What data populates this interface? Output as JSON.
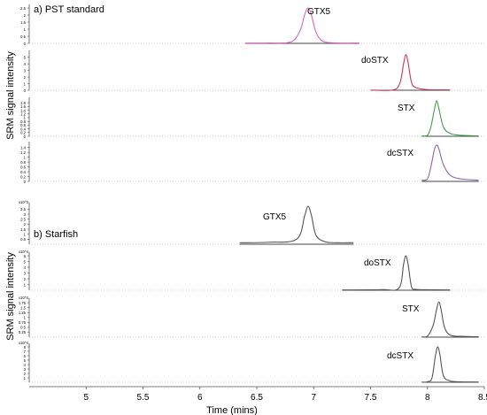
{
  "chart_data": [
    {
      "type": "line",
      "panel_label": "a) PST standard",
      "ylabel": "SRM signal intensity",
      "xlim": [
        4.5,
        8.5
      ],
      "tracks": [
        {
          "peak": "GTX5",
          "trace_color": "#e060c0",
          "x": [
            6.4,
            6.6,
            6.8,
            6.88,
            6.92,
            6.95,
            6.98,
            7.02,
            7.08,
            7.2,
            7.4
          ],
          "y": [
            0.02,
            0.03,
            0.1,
            0.9,
            2.0,
            2.5,
            2.0,
            0.8,
            0.15,
            0.03,
            0.03
          ],
          "yticks": [
            "0",
            "0.5",
            "1",
            "1.5",
            "2",
            "2.5"
          ],
          "ymax": 2.5
        },
        {
          "peak": "doSTX",
          "trace_color": "#cc3355",
          "x": [
            7.5,
            7.7,
            7.76,
            7.79,
            7.81,
            7.83,
            7.86,
            7.9,
            8.0,
            8.2
          ],
          "y": [
            0.03,
            0.05,
            1.2,
            4.0,
            5.4,
            4.2,
            1.2,
            0.4,
            0.1,
            0.05
          ],
          "yticks": [
            "0",
            "1",
            "2",
            "3",
            "4",
            "5"
          ],
          "ymax": 5.5
        },
        {
          "peak": "STX",
          "trace_color": "#4a9a4a",
          "x": [
            7.95,
            8.0,
            8.03,
            8.06,
            8.08,
            8.1,
            8.14,
            8.2,
            8.3,
            8.45
          ],
          "y": [
            0.02,
            0.05,
            0.5,
            1.4,
            1.9,
            1.5,
            0.5,
            0.15,
            0.05,
            0.02
          ],
          "yticks": [
            "0",
            "0.2",
            "0.4",
            "0.6",
            "0.8",
            "1",
            "1.2",
            "1.4",
            "1.6",
            "1.8"
          ],
          "ymax": 1.9
        },
        {
          "peak": "dcSTX",
          "trace_color": "#8866aa",
          "x": [
            7.95,
            8.0,
            8.03,
            8.06,
            8.08,
            8.1,
            8.14,
            8.2,
            8.3,
            8.45
          ],
          "y": [
            0.05,
            0.1,
            0.6,
            1.3,
            1.5,
            1.35,
            0.7,
            0.25,
            0.1,
            0.05
          ],
          "yticks": [
            "0",
            "0.2",
            "0.4",
            "0.6",
            "0.8",
            "1",
            "1.2",
            "1.4"
          ],
          "ymax": 1.5
        }
      ]
    },
    {
      "type": "line",
      "panel_label": "b) Starfish",
      "ylabel": "SRM signal intensity",
      "xlabel": "Time (mins)",
      "xlim": [
        4.5,
        8.5
      ],
      "xticks": [
        "5",
        "5.5",
        "6",
        "6.5",
        "7",
        "7.5",
        "8",
        "8.5"
      ],
      "tracks": [
        {
          "peak": "GTX5",
          "trace_color": "#555555",
          "exponent": "x10^3",
          "x": [
            6.35,
            6.6,
            6.85,
            6.92,
            6.95,
            6.98,
            7.02,
            7.1,
            7.2,
            7.35
          ],
          "y": [
            0.15,
            0.2,
            0.5,
            2.8,
            3.8,
            2.9,
            0.9,
            0.25,
            0.15,
            0.15
          ],
          "yticks": [
            "0.5",
            "1",
            "1.5",
            "2",
            "2.5",
            "3",
            "3.5"
          ],
          "ymax": 3.8
        },
        {
          "peak": "doSTX",
          "trace_color": "#555555",
          "exponent": "x10^4",
          "x": [
            7.25,
            7.6,
            7.75,
            7.79,
            7.81,
            7.83,
            7.86,
            7.9,
            8.0,
            8.2
          ],
          "y": [
            0.05,
            0.1,
            0.4,
            4.5,
            6.0,
            4.5,
            0.6,
            0.15,
            0.08,
            0.05
          ],
          "yticks": [
            "1",
            "2",
            "3",
            "4",
            "5",
            "6"
          ],
          "ymax": 6.0
        },
        {
          "peak": "STX",
          "trace_color": "#555555",
          "exponent": "x10^4",
          "x": [
            7.95,
            8.0,
            8.05,
            8.08,
            8.1,
            8.12,
            8.15,
            8.2,
            8.3,
            8.45
          ],
          "y": [
            0.02,
            0.05,
            0.6,
            1.4,
            1.8,
            1.4,
            0.5,
            0.1,
            0.04,
            0.02
          ],
          "yticks": [
            "0.25",
            "0.5",
            "0.75",
            "1",
            "1.25",
            "1.5",
            "1.75"
          ],
          "ymax": 1.8
        },
        {
          "peak": "dcSTX",
          "trace_color": "#555555",
          "exponent": "x10^4",
          "x": [
            7.95,
            8.0,
            8.04,
            8.07,
            8.09,
            8.11,
            8.14,
            8.2,
            8.3,
            8.45
          ],
          "y": [
            0.05,
            0.1,
            1.0,
            6.0,
            8.0,
            6.2,
            1.5,
            0.3,
            0.1,
            0.05
          ],
          "yticks": [
            "1",
            "2",
            "3",
            "4",
            "5",
            "6",
            "7",
            "8"
          ],
          "ymax": 8.0
        }
      ]
    }
  ]
}
